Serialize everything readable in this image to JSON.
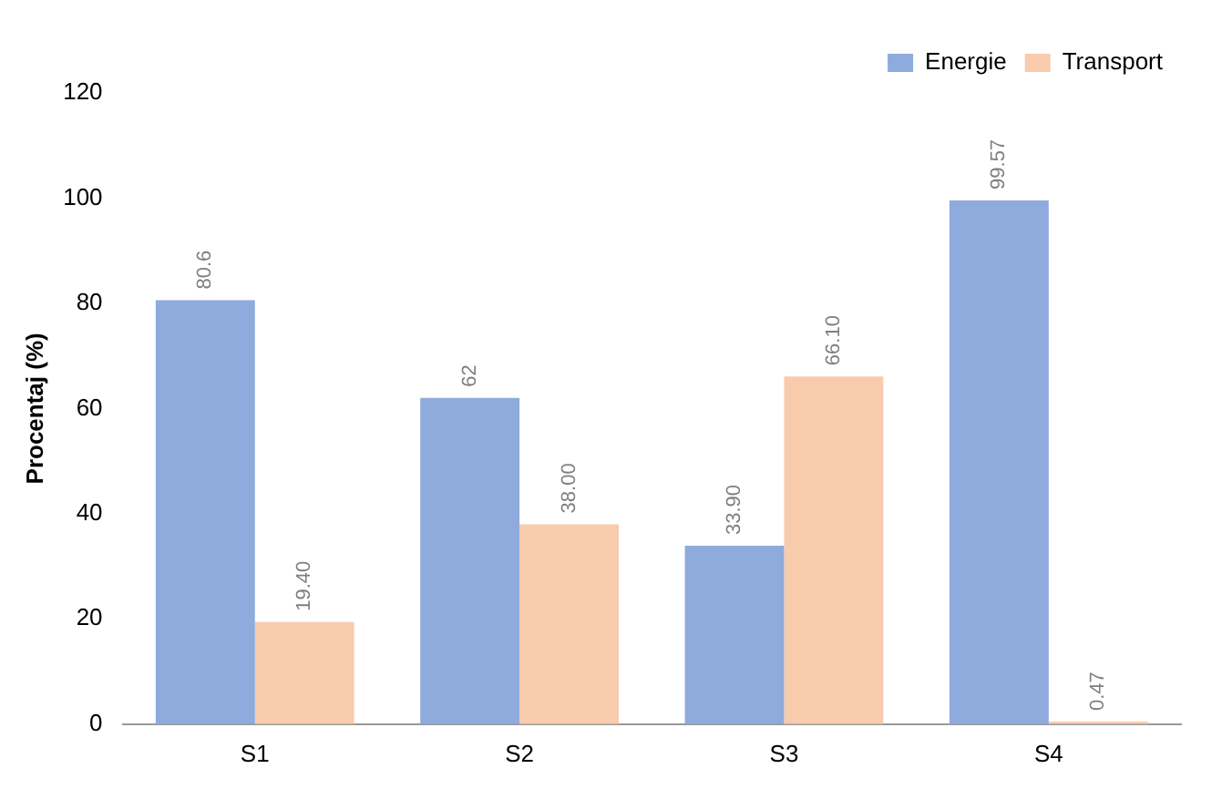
{
  "chart_data": {
    "type": "bar",
    "ylabel": "Procentaj (%)",
    "categories": [
      "S1",
      "S2",
      "S3",
      "S4"
    ],
    "series": [
      {
        "name": "Energie",
        "color": "#8faadc",
        "values": [
          80.6,
          62,
          33.9,
          99.57
        ],
        "value_labels": [
          "80.6",
          "62",
          "33.90",
          "99.57"
        ]
      },
      {
        "name": "Transport",
        "color": "#f8cbad",
        "values": [
          19.4,
          38,
          66.1,
          0.47
        ],
        "value_labels": [
          "19.40",
          "38.00",
          "66.10",
          "0.47"
        ]
      }
    ],
    "ylim": [
      0,
      120
    ],
    "yticks": [
      0,
      20,
      40,
      60,
      80,
      100,
      120
    ],
    "grid": false,
    "legend": "top right"
  }
}
